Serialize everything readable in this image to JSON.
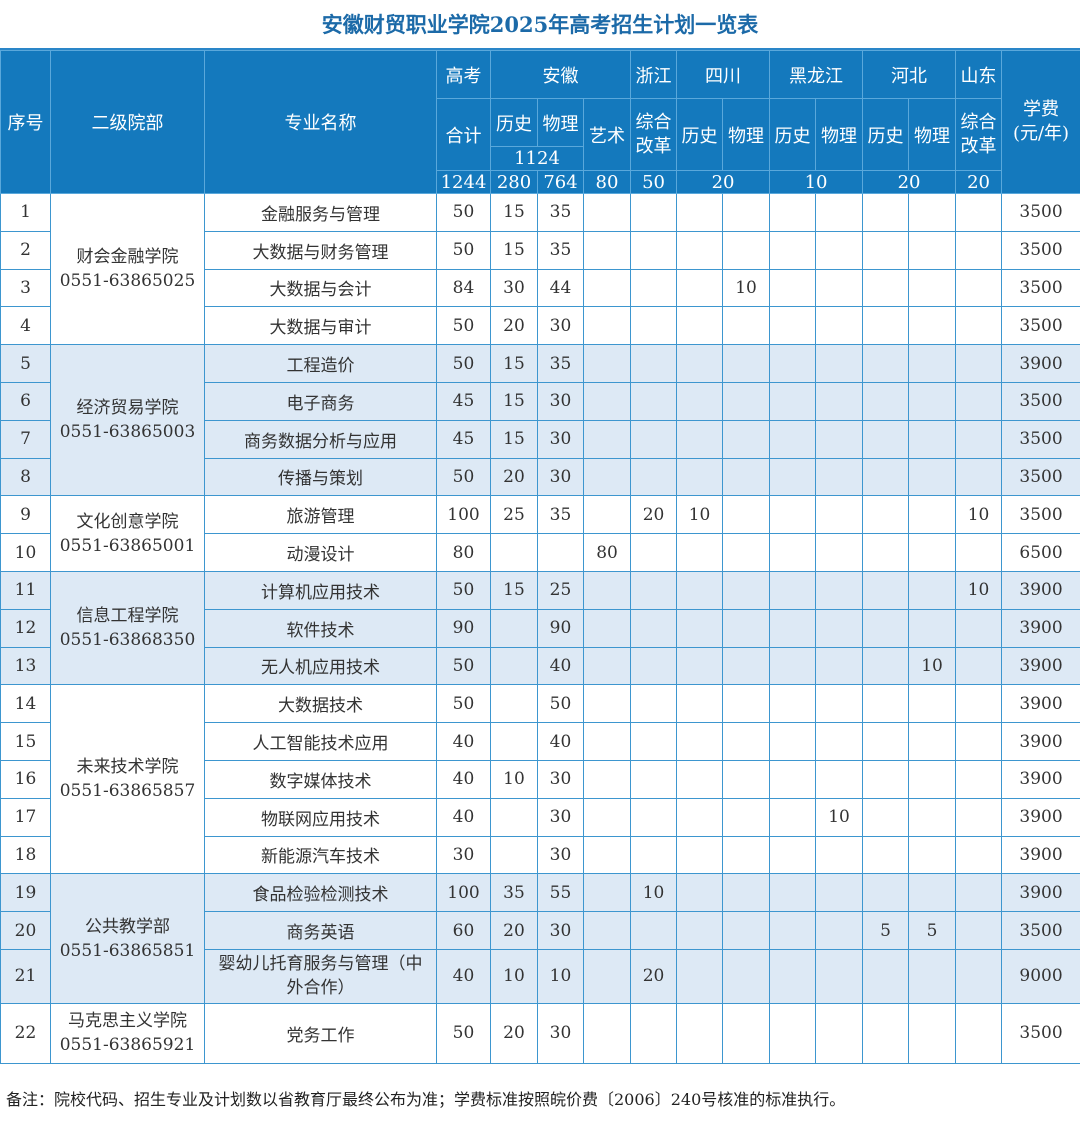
{
  "title": "安徽财贸职业学院2025年高考招生计划一览表",
  "header": {
    "seq": "序号",
    "college": "二级院部",
    "major": "专业名称",
    "gaokao": "高考",
    "total_label": "合计",
    "total": "1244",
    "anhui": "安徽",
    "history": "历史",
    "physics": "物理",
    "art": "艺术",
    "anhui_hp_total": "1124",
    "anhui_history_total": "280",
    "anhui_physics_total": "764",
    "anhui_art_total": "80",
    "zhejiang": "浙江",
    "comprehensive": "综合改革",
    "zhejiang_total": "50",
    "sichuan": "四川",
    "sichuan_total": "20",
    "heilongjiang": "黑龙江",
    "heilongjiang_total": "10",
    "hebei": "河北",
    "hebei_total": "20",
    "shandong": "山东",
    "shandong_total": "20",
    "tuition": "学费",
    "tuition_unit": "(元/年)"
  },
  "colleges": [
    {
      "name": "财会金融学院",
      "phone": "0551-63865025",
      "rows": 4
    },
    {
      "name": "经济贸易学院",
      "phone": "0551-63865003",
      "rows": 4
    },
    {
      "name": "文化创意学院",
      "phone": "0551-63865001",
      "rows": 2
    },
    {
      "name": "信息工程学院",
      "phone": "0551-63868350",
      "rows": 3
    },
    {
      "name": "未来技术学院",
      "phone": "0551-63865857",
      "rows": 5
    },
    {
      "name": "公共教学部",
      "phone": "0551-63865851",
      "rows": 3
    },
    {
      "name": "马克思主义学院",
      "phone": "0551-63865921",
      "rows": 1
    }
  ],
  "rows": [
    [
      "1",
      "金融服务与管理",
      "50",
      "15",
      "35",
      "",
      "",
      "",
      "",
      "",
      "",
      "",
      "",
      "",
      "3500"
    ],
    [
      "2",
      "大数据与财务管理",
      "50",
      "15",
      "35",
      "",
      "",
      "",
      "",
      "",
      "",
      "",
      "",
      "",
      "3500"
    ],
    [
      "3",
      "大数据与会计",
      "84",
      "30",
      "44",
      "",
      "",
      "",
      "10",
      "",
      "",
      "",
      "",
      "",
      "3500"
    ],
    [
      "4",
      "大数据与审计",
      "50",
      "20",
      "30",
      "",
      "",
      "",
      "",
      "",
      "",
      "",
      "",
      "",
      "3500"
    ],
    [
      "5",
      "工程造价",
      "50",
      "15",
      "35",
      "",
      "",
      "",
      "",
      "",
      "",
      "",
      "",
      "",
      "3900"
    ],
    [
      "6",
      "电子商务",
      "45",
      "15",
      "30",
      "",
      "",
      "",
      "",
      "",
      "",
      "",
      "",
      "",
      "3500"
    ],
    [
      "7",
      "商务数据分析与应用",
      "45",
      "15",
      "30",
      "",
      "",
      "",
      "",
      "",
      "",
      "",
      "",
      "",
      "3500"
    ],
    [
      "8",
      "传播与策划",
      "50",
      "20",
      "30",
      "",
      "",
      "",
      "",
      "",
      "",
      "",
      "",
      "",
      "3500"
    ],
    [
      "9",
      "旅游管理",
      "100",
      "25",
      "35",
      "",
      "20",
      "10",
      "",
      "",
      "",
      "",
      "",
      "10",
      "3500"
    ],
    [
      "10",
      "动漫设计",
      "80",
      "",
      "",
      "80",
      "",
      "",
      "",
      "",
      "",
      "",
      "",
      "",
      "6500"
    ],
    [
      "11",
      "计算机应用技术",
      "50",
      "15",
      "25",
      "",
      "",
      "",
      "",
      "",
      "",
      "",
      "",
      "10",
      "3900"
    ],
    [
      "12",
      "软件技术",
      "90",
      "",
      "90",
      "",
      "",
      "",
      "",
      "",
      "",
      "",
      "",
      "",
      "3900"
    ],
    [
      "13",
      "无人机应用技术",
      "50",
      "",
      "40",
      "",
      "",
      "",
      "",
      "",
      "",
      "",
      "10",
      "",
      "3900"
    ],
    [
      "14",
      "大数据技术",
      "50",
      "",
      "50",
      "",
      "",
      "",
      "",
      "",
      "",
      "",
      "",
      "",
      "3900"
    ],
    [
      "15",
      "人工智能技术应用",
      "40",
      "",
      "40",
      "",
      "",
      "",
      "",
      "",
      "",
      "",
      "",
      "",
      "3900"
    ],
    [
      "16",
      "数字媒体技术",
      "40",
      "10",
      "30",
      "",
      "",
      "",
      "",
      "",
      "",
      "",
      "",
      "",
      "3900"
    ],
    [
      "17",
      "物联网应用技术",
      "40",
      "",
      "30",
      "",
      "",
      "",
      "",
      "",
      "10",
      "",
      "",
      "",
      "3900"
    ],
    [
      "18",
      "新能源汽车技术",
      "30",
      "",
      "30",
      "",
      "",
      "",
      "",
      "",
      "",
      "",
      "",
      "",
      "3900"
    ],
    [
      "19",
      "食品检验检测技术",
      "100",
      "35",
      "55",
      "",
      "10",
      "",
      "",
      "",
      "",
      "",
      "",
      "",
      "3900"
    ],
    [
      "20",
      "商务英语",
      "60",
      "20",
      "30",
      "",
      "",
      "",
      "",
      "",
      "",
      "5",
      "5",
      "",
      "3500"
    ],
    [
      "21",
      "婴幼儿托育服务与管理（中外合作）",
      "40",
      "10",
      "10",
      "",
      "20",
      "",
      "",
      "",
      "",
      "",
      "",
      "",
      "9000"
    ],
    [
      "22",
      "党务工作",
      "50",
      "20",
      "30",
      "",
      "",
      "",
      "",
      "",
      "",
      "",
      "",
      "",
      "3500"
    ]
  ],
  "note": "备注：院校代码、招生专业及计划数以省教育厅最终公布为准；学费标准按照皖价费〔2006〕240号核准的标准执行。",
  "colors": {
    "header_bg": "#1479bd",
    "shade": "#dde9f5",
    "border": "#3d96cf",
    "title": "#1c6aa8"
  }
}
